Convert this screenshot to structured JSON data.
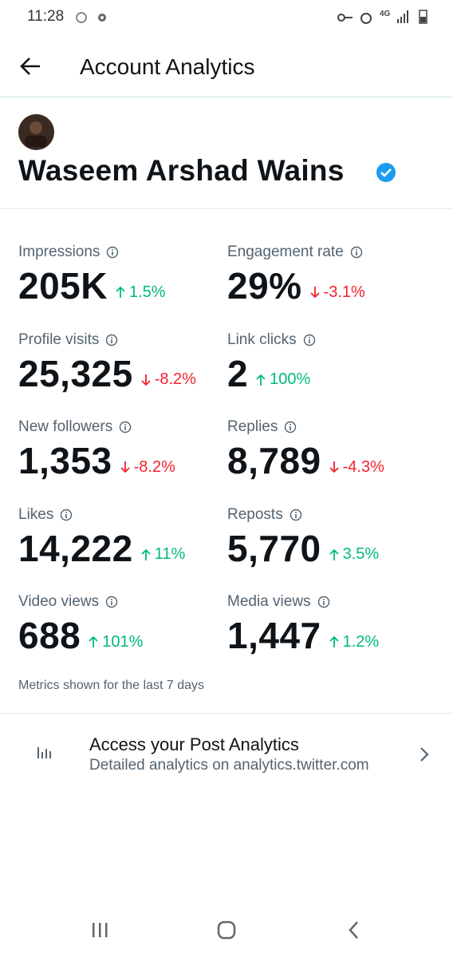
{
  "status_bar": {
    "time": "11:28",
    "network": "4G"
  },
  "header": {
    "title": "Account Analytics"
  },
  "profile": {
    "name": "Waseem Arshad Wains",
    "verified": true
  },
  "metrics": [
    {
      "label": "Impressions",
      "value": "205K",
      "change": "1.5%",
      "direction": "up"
    },
    {
      "label": "Engagement rate",
      "value": "29%",
      "change": "-3.1%",
      "direction": "down"
    },
    {
      "label": "Profile visits",
      "value": "25,325",
      "change": "-8.2%",
      "direction": "down"
    },
    {
      "label": "Link clicks",
      "value": "2",
      "change": "100%",
      "direction": "up"
    },
    {
      "label": "New followers",
      "value": "1,353",
      "change": "-8.2%",
      "direction": "down"
    },
    {
      "label": "Replies",
      "value": "8,789",
      "change": "-4.3%",
      "direction": "down"
    },
    {
      "label": "Likes",
      "value": "14,222",
      "change": "11%",
      "direction": "up"
    },
    {
      "label": "Reposts",
      "value": "5,770",
      "change": "3.5%",
      "direction": "up"
    },
    {
      "label": "Video views",
      "value": "688",
      "change": "101%",
      "direction": "up"
    },
    {
      "label": "Media views",
      "value": "1,447",
      "change": "1.2%",
      "direction": "up"
    }
  ],
  "footnote": "Metrics shown for the last 7 days",
  "post_analytics": {
    "title": "Access your Post Analytics",
    "subtitle": "Detailed analytics on analytics.twitter.com"
  }
}
